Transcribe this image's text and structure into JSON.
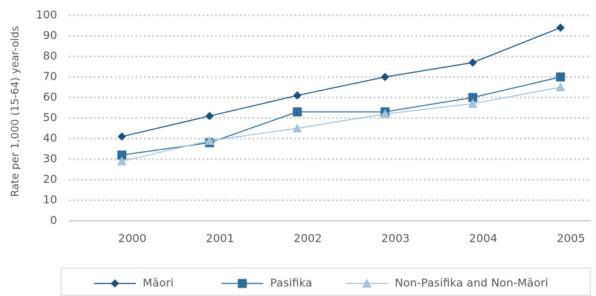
{
  "chart_data": {
    "type": "line",
    "y_label": "Rate per 1,000 (15-64) year-olds",
    "categories": [
      "2000",
      "2001",
      "2002",
      "2003",
      "2004",
      "2005"
    ],
    "series": [
      {
        "name": "Māori",
        "color": "#1b4f7e",
        "marker": "diamond",
        "values": [
          41,
          51,
          61,
          70,
          77,
          94
        ]
      },
      {
        "name": "Pasifika",
        "color": "#2f6c98",
        "marker": "square",
        "values": [
          32,
          38,
          53,
          53,
          60,
          70
        ]
      },
      {
        "name": "Non-Pasifika and Non-Māori",
        "color": "#a8c3d8",
        "marker": "triangle",
        "values": [
          29,
          39,
          45,
          52,
          57,
          65
        ]
      }
    ],
    "ylim": [
      0,
      100
    ],
    "yticks": [
      0,
      10,
      20,
      30,
      40,
      50,
      60,
      70,
      80,
      90,
      100
    ],
    "grid": true,
    "legend": "bottom"
  }
}
